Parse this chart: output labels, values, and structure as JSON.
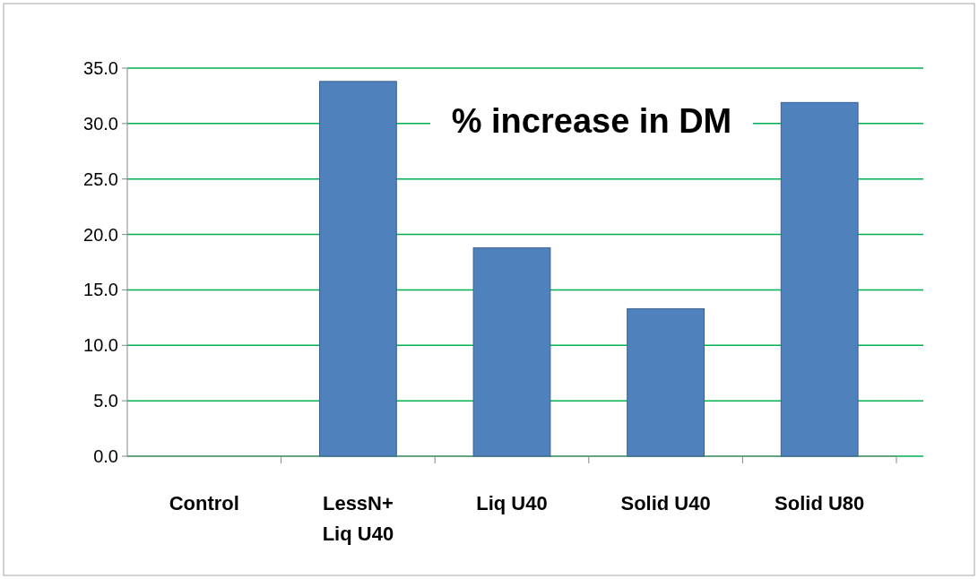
{
  "chart_data": {
    "type": "bar",
    "title": "% increase in DM",
    "categories": [
      "Control",
      "LessN+\nLiq U40",
      "Liq U40",
      "Solid U40",
      "Solid U80"
    ],
    "values": [
      0,
      33.8,
      18.8,
      13.3,
      31.9
    ],
    "color": "#4f81bd",
    "ylim": [
      0,
      35
    ],
    "yticks": [
      {
        "value": 0,
        "label": "0.0"
      },
      {
        "value": 5,
        "label": "5.0"
      },
      {
        "value": 10,
        "label": "10.0"
      },
      {
        "value": 15,
        "label": "15.0"
      },
      {
        "value": 20,
        "label": "20.0"
      },
      {
        "value": 25,
        "label": "25.0"
      },
      {
        "value": 30,
        "label": "30.0"
      },
      {
        "value": 35,
        "label": "35.0"
      }
    ],
    "grid": "y"
  }
}
